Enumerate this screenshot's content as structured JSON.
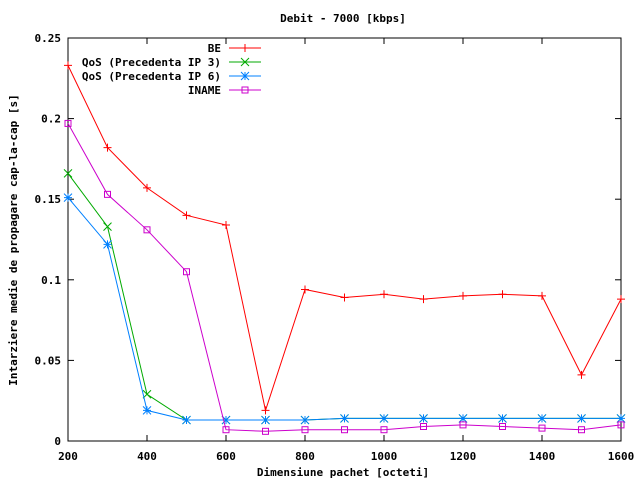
{
  "chart_data": {
    "type": "line",
    "title": "Debit - 7000 [kbps]",
    "xlabel": "Dimensiune pachet [octeti]",
    "ylabel": "Intarziere medie de propagare cap-la-cap [s]",
    "xlim": [
      200,
      1600
    ],
    "ylim": [
      0,
      0.25
    ],
    "xticks": [
      200,
      400,
      600,
      800,
      1000,
      1200,
      1400,
      1600
    ],
    "yticks": [
      0,
      0.05,
      0.1,
      0.15,
      0.2,
      0.25
    ],
    "xtick_labels": [
      "200",
      "400",
      "600",
      "800",
      "1000",
      "1200",
      "1400",
      "1600"
    ],
    "ytick_labels": [
      "0",
      "0.05",
      "0.1",
      "0.15",
      "0.2",
      "0.25"
    ],
    "grid": false,
    "legend_position": "top-left",
    "series": [
      {
        "name": "BE",
        "color": "#ff0000",
        "marker": "plus",
        "x": [
          200,
          300,
          400,
          500,
          600,
          700,
          800,
          900,
          1000,
          1100,
          1200,
          1300,
          1400,
          1500,
          1600
        ],
        "y": [
          0.233,
          0.182,
          0.157,
          0.14,
          0.134,
          0.019,
          0.094,
          0.089,
          0.091,
          0.088,
          0.09,
          0.091,
          0.09,
          0.041,
          0.088
        ]
      },
      {
        "name": "QoS (Precedenta IP 3)",
        "color": "#00aa00",
        "marker": "cross",
        "x": [
          200,
          300,
          400,
          500,
          600,
          700,
          800,
          900,
          1000,
          1100,
          1200,
          1300,
          1400,
          1500,
          1600
        ],
        "y": [
          0.166,
          0.133,
          0.029,
          0.013,
          0.013,
          0.013,
          0.013,
          0.014,
          0.014,
          0.014,
          0.014,
          0.014,
          0.014,
          0.014,
          0.014
        ]
      },
      {
        "name": "QoS (Precedenta IP 6)",
        "color": "#0080ff",
        "marker": "star",
        "x": [
          200,
          300,
          400,
          500,
          600,
          700,
          800,
          900,
          1000,
          1100,
          1200,
          1300,
          1400,
          1500,
          1600
        ],
        "y": [
          0.151,
          0.122,
          0.019,
          0.013,
          0.013,
          0.013,
          0.013,
          0.014,
          0.014,
          0.014,
          0.014,
          0.014,
          0.014,
          0.014,
          0.014
        ]
      },
      {
        "name": "INAME",
        "color": "#cc00cc",
        "marker": "square",
        "x": [
          200,
          300,
          400,
          500,
          600,
          700,
          800,
          900,
          1000,
          1100,
          1200,
          1300,
          1400,
          1500,
          1600
        ],
        "y": [
          0.197,
          0.153,
          0.131,
          0.105,
          0.007,
          0.006,
          0.007,
          0.007,
          0.007,
          0.009,
          0.01,
          0.009,
          0.008,
          0.007,
          0.01
        ]
      }
    ]
  }
}
